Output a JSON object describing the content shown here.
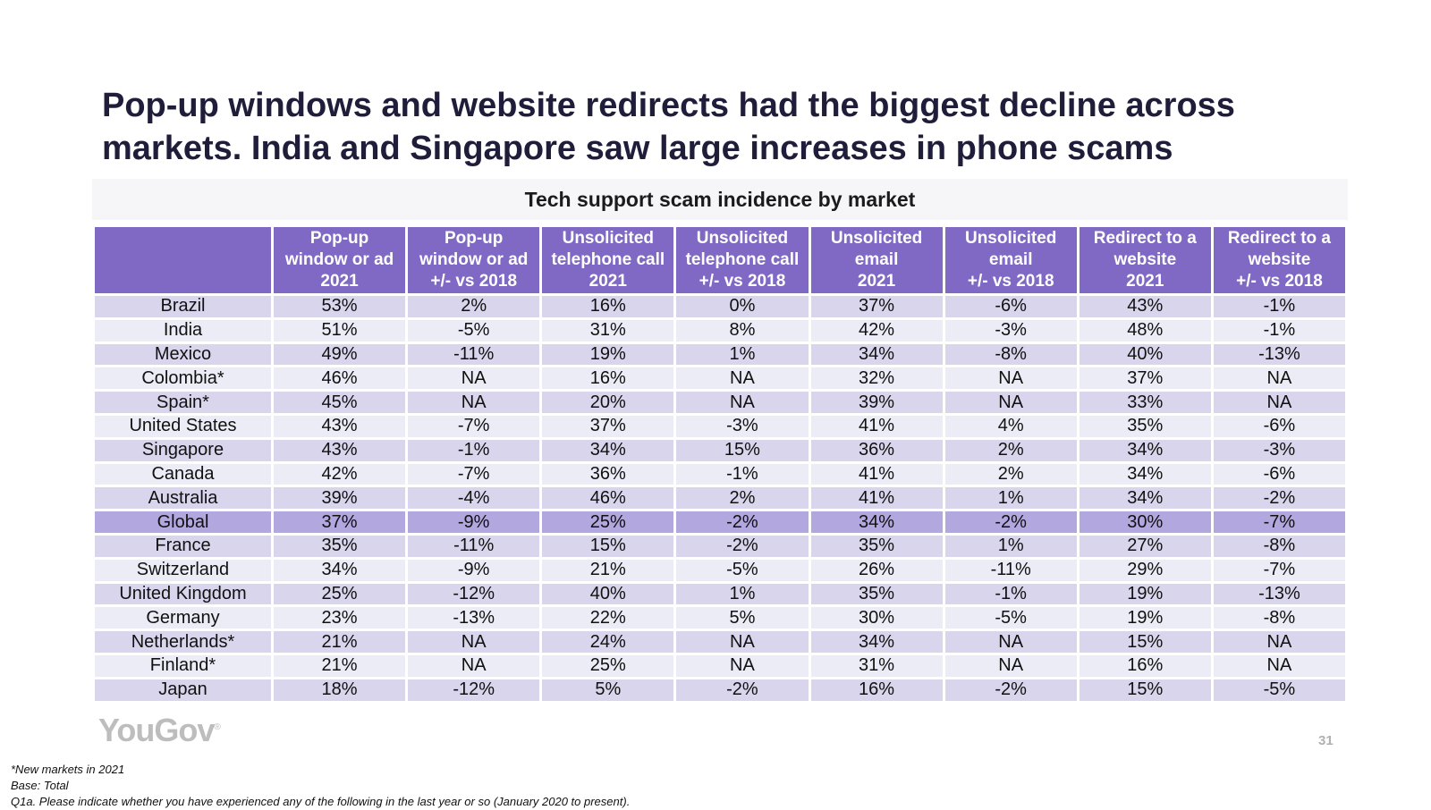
{
  "title": "Pop-up windows and website redirects had the biggest decline across markets. India and Singapore saw large increases in phone scams",
  "table": {
    "caption": "Tech support scam incidence by market",
    "columns": [
      [
        "Pop-up",
        "window or ad",
        "2021"
      ],
      [
        "Pop-up",
        "window or ad",
        "+/- vs 2018"
      ],
      [
        "Unsolicited",
        "telephone call",
        "2021"
      ],
      [
        "Unsolicited",
        "telephone call",
        "+/- vs 2018"
      ],
      [
        "Unsolicited",
        "email",
        "2021"
      ],
      [
        "Unsolicited",
        "email",
        "+/- vs 2018"
      ],
      [
        "Redirect to a",
        "website",
        "2021"
      ],
      [
        "Redirect to a",
        "website",
        "+/- vs 2018"
      ]
    ],
    "rows": [
      [
        "Brazil",
        "53%",
        "2%",
        "16%",
        "0%",
        "37%",
        "-6%",
        "43%",
        "-1%"
      ],
      [
        "India",
        "51%",
        "-5%",
        "31%",
        "8%",
        "42%",
        "-3%",
        "48%",
        "-1%"
      ],
      [
        "Mexico",
        "49%",
        "-11%",
        "19%",
        "1%",
        "34%",
        "-8%",
        "40%",
        "-13%"
      ],
      [
        "Colombia*",
        "46%",
        "NA",
        "16%",
        "NA",
        "32%",
        "NA",
        "37%",
        "NA"
      ],
      [
        "Spain*",
        "45%",
        "NA",
        "20%",
        "NA",
        "39%",
        "NA",
        "33%",
        "NA"
      ],
      [
        "United States",
        "43%",
        "-7%",
        "37%",
        "-3%",
        "41%",
        "4%",
        "35%",
        "-6%"
      ],
      [
        "Singapore",
        "43%",
        "-1%",
        "34%",
        "15%",
        "36%",
        "2%",
        "34%",
        "-3%"
      ],
      [
        "Canada",
        "42%",
        "-7%",
        "36%",
        "-1%",
        "41%",
        "2%",
        "34%",
        "-6%"
      ],
      [
        "Australia",
        "39%",
        "-4%",
        "46%",
        "2%",
        "41%",
        "1%",
        "34%",
        "-2%"
      ],
      [
        "Global",
        "37%",
        "-9%",
        "25%",
        "-2%",
        "34%",
        "-2%",
        "30%",
        "-7%"
      ],
      [
        "France",
        "35%",
        "-11%",
        "15%",
        "-2%",
        "35%",
        "1%",
        "27%",
        "-8%"
      ],
      [
        "Switzerland",
        "34%",
        "-9%",
        "21%",
        "-5%",
        "26%",
        "-11%",
        "29%",
        "-7%"
      ],
      [
        "United Kingdom",
        "25%",
        "-12%",
        "40%",
        "1%",
        "35%",
        "-1%",
        "19%",
        "-13%"
      ],
      [
        "Germany",
        "23%",
        "-13%",
        "22%",
        "5%",
        "30%",
        "-5%",
        "19%",
        "-8%"
      ],
      [
        "Netherlands*",
        "21%",
        "NA",
        "24%",
        "NA",
        "34%",
        "NA",
        "15%",
        "NA"
      ],
      [
        "Finland*",
        "21%",
        "NA",
        "25%",
        "NA",
        "31%",
        "NA",
        "16%",
        "NA"
      ],
      [
        "Japan",
        "18%",
        "-12%",
        "5%",
        "-2%",
        "16%",
        "-2%",
        "15%",
        "-5%"
      ]
    ],
    "highlight_row": "Global"
  },
  "logo": "YouGov",
  "logo_mark": "®",
  "page_number": "31",
  "footnotes": [
    "*New markets in 2021",
    "Base: Total",
    "Q1a. Please indicate whether you have experienced any of the following in the last year or so (January 2020 to present)."
  ]
}
